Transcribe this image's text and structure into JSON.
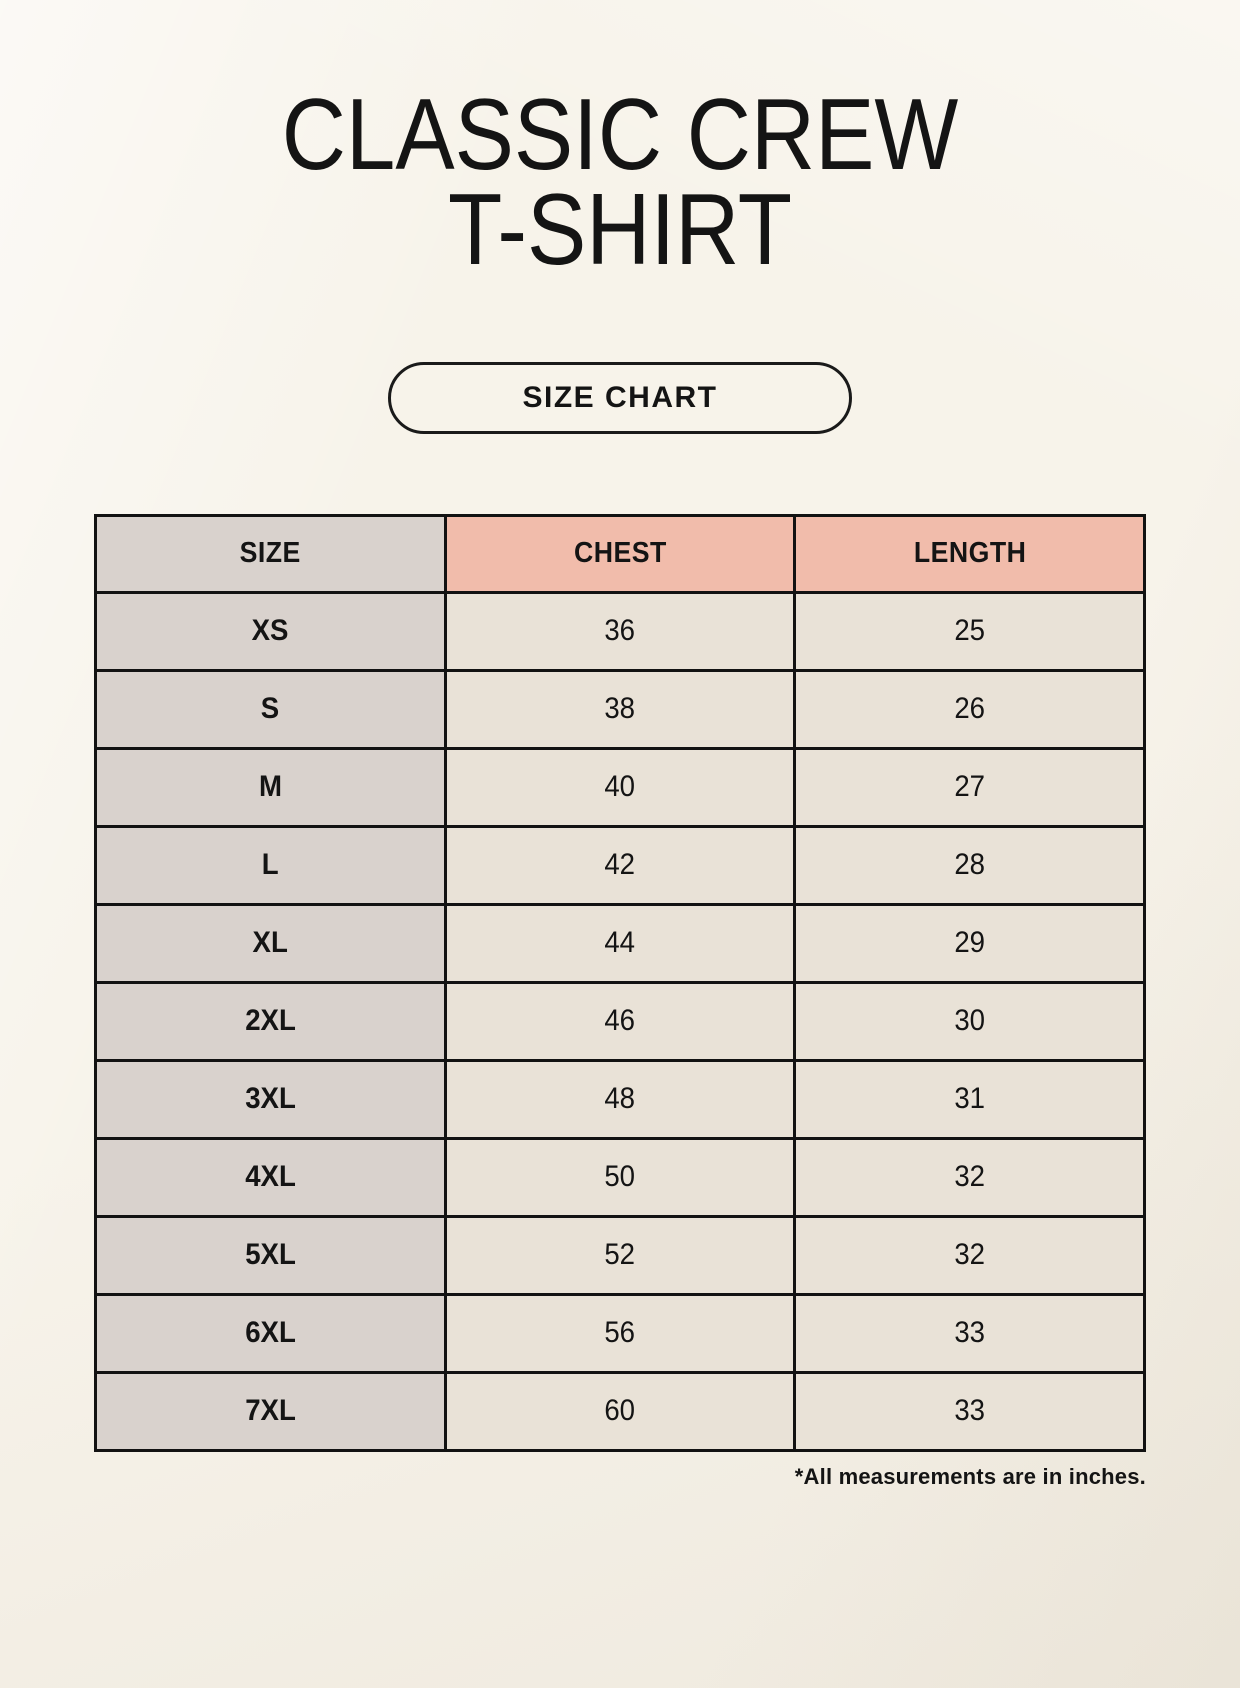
{
  "header": {
    "title_line1": "CLASSIC CREW",
    "title_line2": "T-SHIRT",
    "size_chart_button": "SIZE CHART"
  },
  "chart_data": {
    "type": "table",
    "title": "CLASSIC CREW T-SHIRT",
    "columns": [
      "SIZE",
      "CHEST",
      "LENGTH"
    ],
    "rows": [
      {
        "size": "XS",
        "chest": "36",
        "length": "25"
      },
      {
        "size": "S",
        "chest": "38",
        "length": "26"
      },
      {
        "size": "M",
        "chest": "40",
        "length": "27"
      },
      {
        "size": "L",
        "chest": "42",
        "length": "28"
      },
      {
        "size": "XL",
        "chest": "44",
        "length": "29"
      },
      {
        "size": "2XL",
        "chest": "46",
        "length": "30"
      },
      {
        "size": "3XL",
        "chest": "48",
        "length": "31"
      },
      {
        "size": "4XL",
        "chest": "50",
        "length": "32"
      },
      {
        "size": "5XL",
        "chest": "52",
        "length": "32"
      },
      {
        "size": "6XL",
        "chest": "56",
        "length": "33"
      },
      {
        "size": "7XL",
        "chest": "60",
        "length": "33"
      }
    ],
    "footnote": "*All measurements are in inches."
  },
  "colors": {
    "page_background": "#f7f3ea",
    "size_column_background": "#d9d2cd",
    "header_accent_salmon": "#f1bcab",
    "data_cell_background": "#e9e2d7",
    "table_border": "#121212",
    "text": "#141414"
  }
}
